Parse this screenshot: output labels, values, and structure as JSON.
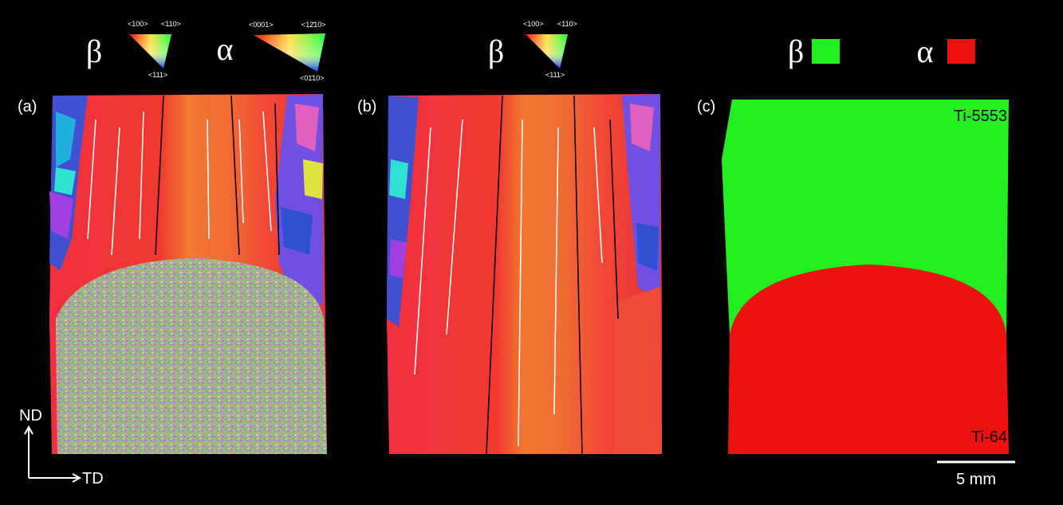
{
  "legend_a": {
    "beta": {
      "symbol": "β",
      "corners": [
        "<100>",
        "<110>",
        "<111>"
      ]
    },
    "alpha": {
      "symbol": "α",
      "corners": [
        "<0001>",
        "<12̄10>",
        "<01̄10>"
      ]
    }
  },
  "legend_b": {
    "beta": {
      "symbol": "β",
      "corners": [
        "<100>",
        "<110>",
        "<111>"
      ]
    }
  },
  "legend_c": {
    "beta": "β",
    "alpha": "α"
  },
  "panel_a": {
    "label": "(a)",
    "axes": {
      "vertical": "ND",
      "horizontal": "TD"
    }
  },
  "panel_b": {
    "label": "(b)"
  },
  "panel_c": {
    "label": "(c)",
    "top_label": "Ti-5553",
    "bottom_label": "Ti-64",
    "scale_bar": "5 mm"
  }
}
